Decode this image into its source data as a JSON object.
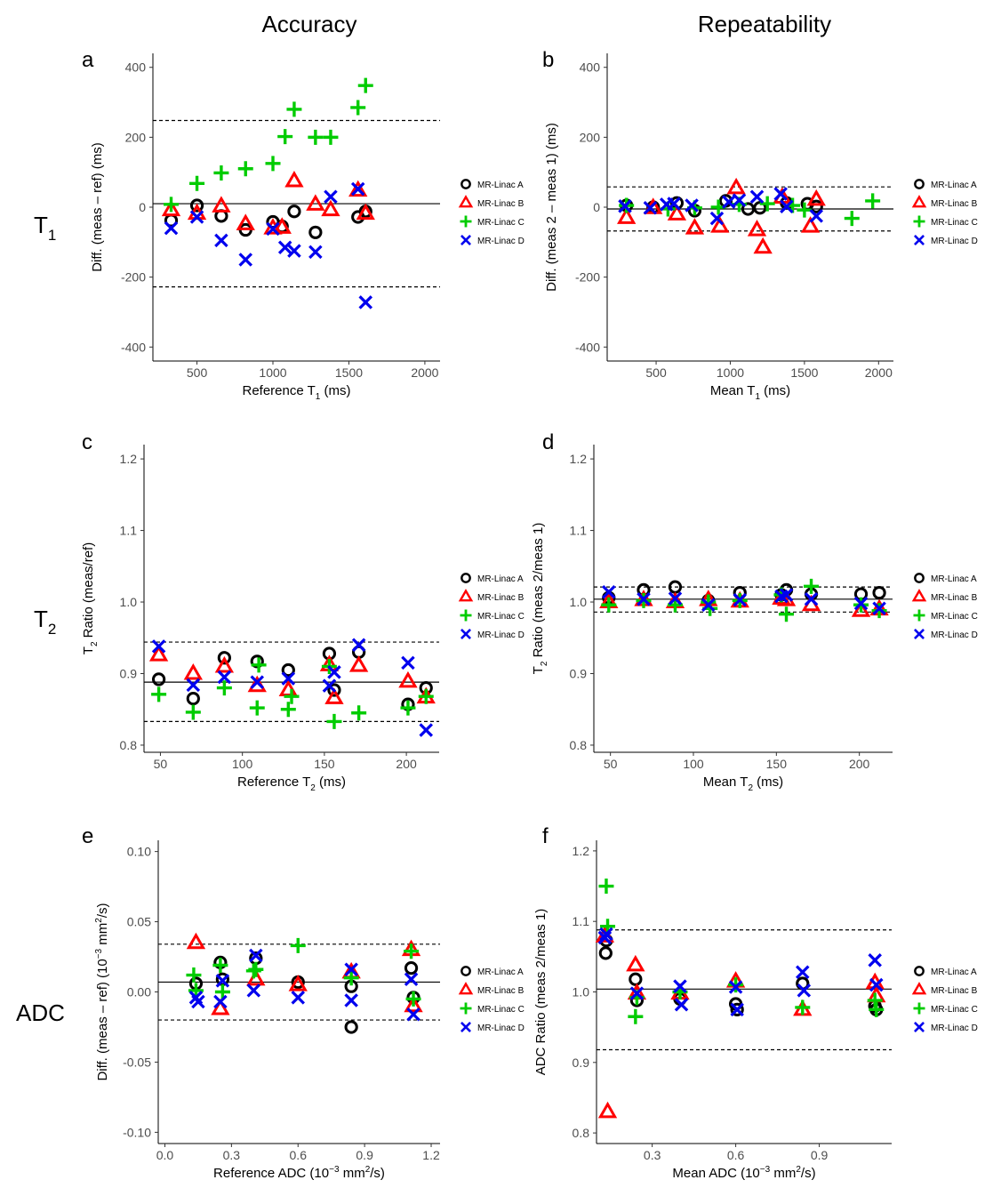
{
  "column_titles": [
    "Accuracy",
    "Repeatability"
  ],
  "row_titles": [
    {
      "main": "T",
      "sub": "1"
    },
    {
      "main": "T",
      "sub": "2"
    },
    {
      "main": "ADC",
      "sub": ""
    }
  ],
  "legend": {
    "entries": [
      "MR-Linac A",
      "MR-Linac B",
      "MR-Linac C",
      "MR-Linac D"
    ],
    "markers": [
      "circle",
      "triangle",
      "plus",
      "cross"
    ],
    "colors": [
      "#000000",
      "#ff0000",
      "#00cc00",
      "#0000ee"
    ]
  },
  "chart_data": [
    {
      "type": "scatter",
      "panel": "a",
      "xlabel": {
        "pre": "Reference T",
        "sub": "1",
        "post": " (ms)"
      },
      "ylabel": "Diff. (meas – ref) (ms)",
      "xlim": [
        210,
        2100
      ],
      "ylim": [
        -440,
        440
      ],
      "xticks": [
        500,
        1000,
        1500,
        2000
      ],
      "yticks": [
        -400,
        -200,
        0,
        200,
        400
      ],
      "hlines": {
        "solid": 10,
        "dashed": [
          248,
          -228
        ]
      },
      "series": [
        {
          "name": "MR-Linac A",
          "x": [
            330,
            500,
            660,
            820,
            1000,
            1060,
            1140,
            1280,
            1560,
            1610
          ],
          "y": [
            -38,
            5,
            -25,
            -65,
            -42,
            -55,
            -12,
            -72,
            -28,
            -12
          ]
        },
        {
          "name": "MR-Linac B",
          "x": [
            330,
            500,
            660,
            820,
            1000,
            1060,
            1140,
            1280,
            1380,
            1560,
            1610
          ],
          "y": [
            -8,
            -18,
            3,
            -48,
            -60,
            -58,
            75,
            8,
            -8,
            48,
            -18
          ]
        },
        {
          "name": "MR-Linac C",
          "x": [
            330,
            500,
            660,
            820,
            1000,
            1080,
            1140,
            1280,
            1380,
            1560,
            1610
          ],
          "y": [
            8,
            68,
            98,
            110,
            125,
            202,
            280,
            200,
            200,
            285,
            348
          ]
        },
        {
          "name": "MR-Linac D",
          "x": [
            330,
            500,
            660,
            820,
            1000,
            1080,
            1140,
            1280,
            1380,
            1560,
            1610
          ],
          "y": [
            -60,
            -28,
            -95,
            -150,
            -62,
            -115,
            -125,
            -128,
            30,
            52,
            -272
          ]
        }
      ]
    },
    {
      "type": "scatter",
      "panel": "b",
      "xlabel": {
        "pre": "Mean T",
        "sub": "1",
        "post": " (ms)"
      },
      "ylabel": "Diff. (meas 2 – meas 1) (ms)",
      "xlim": [
        170,
        2100
      ],
      "ylim": [
        -440,
        440
      ],
      "xticks": [
        500,
        1000,
        1500,
        2000
      ],
      "yticks": [
        -400,
        -200,
        0,
        200,
        400
      ],
      "hlines": {
        "solid": -5,
        "dashed": [
          58,
          -68
        ]
      },
      "series": [
        {
          "name": "MR-Linac A",
          "x": [
            300,
            480,
            640,
            760,
            970,
            1120,
            1200,
            1380,
            1520,
            1580
          ],
          "y": [
            5,
            0,
            12,
            -10,
            18,
            -5,
            -2,
            12,
            10,
            2
          ]
        },
        {
          "name": "MR-Linac B",
          "x": [
            300,
            480,
            640,
            760,
            930,
            1040,
            1180,
            1220,
            1350,
            1540,
            1580
          ],
          "y": [
            -30,
            -2,
            -20,
            -60,
            -55,
            55,
            -65,
            -115,
            28,
            -55,
            22
          ]
        },
        {
          "name": "MR-Linac C",
          "x": [
            300,
            580,
            760,
            920,
            1060,
            1250,
            1420,
            1500,
            1820,
            1960
          ],
          "y": [
            5,
            -5,
            -2,
            0,
            8,
            10,
            5,
            -8,
            -32,
            18
          ]
        },
        {
          "name": "MR-Linac D",
          "x": [
            290,
            460,
            570,
            620,
            740,
            910,
            990,
            1060,
            1180,
            1340,
            1380,
            1580
          ],
          "y": [
            3,
            -2,
            8,
            10,
            5,
            -32,
            15,
            20,
            30,
            38,
            2,
            -25
          ]
        }
      ]
    },
    {
      "type": "scatter",
      "panel": "c",
      "xlabel": {
        "pre": "Reference T",
        "sub": "2",
        "post": " (ms)"
      },
      "ylabel": {
        "pre": "T",
        "sub": "2",
        "post": " Ratio (meas/ref)"
      },
      "xlim": [
        40,
        220
      ],
      "ylim": [
        0.79,
        1.22
      ],
      "xticks": [
        50,
        100,
        150,
        200
      ],
      "yticks": [
        0.8,
        0.9,
        1.0,
        1.1,
        1.2
      ],
      "yticklabels": [
        "0.8",
        "0.9",
        "1.0",
        "1.1",
        "1.2"
      ],
      "hlines": {
        "solid": 0.888,
        "dashed": [
          0.944,
          0.833
        ]
      },
      "series": [
        {
          "name": "MR-Linac A",
          "x": [
            49,
            70,
            89,
            109,
            128,
            153,
            156,
            171,
            201,
            212
          ],
          "y": [
            0.892,
            0.865,
            0.922,
            0.917,
            0.905,
            0.928,
            0.877,
            0.93,
            0.857,
            0.88
          ]
        },
        {
          "name": "MR-Linac B",
          "x": [
            49,
            70,
            89,
            109,
            128,
            153,
            156,
            171,
            201,
            212
          ],
          "y": [
            0.926,
            0.9,
            0.91,
            0.883,
            0.877,
            0.912,
            0.866,
            0.911,
            0.889,
            0.867
          ]
        },
        {
          "name": "MR-Linac C",
          "x": [
            49,
            70,
            89,
            109,
            110,
            128,
            130,
            153,
            156,
            171,
            201,
            212
          ],
          "y": [
            0.871,
            0.846,
            0.88,
            0.852,
            0.912,
            0.85,
            0.868,
            0.91,
            0.833,
            0.845,
            0.852,
            0.868
          ]
        },
        {
          "name": "MR-Linac D",
          "x": [
            49,
            70,
            89,
            109,
            128,
            153,
            156,
            171,
            201,
            212
          ],
          "y": [
            0.938,
            0.884,
            0.895,
            0.888,
            0.893,
            0.883,
            0.902,
            0.94,
            0.915,
            0.821
          ]
        }
      ]
    },
    {
      "type": "scatter",
      "panel": "d",
      "xlabel": {
        "pre": "Mean T",
        "sub": "2",
        "post": " (ms)"
      },
      "ylabel": {
        "pre": "T",
        "sub": "2",
        "post": " Ratio (meas 2/meas 1)"
      },
      "xlim": [
        40,
        220
      ],
      "ylim": [
        0.79,
        1.22
      ],
      "xticks": [
        50,
        100,
        150,
        200
      ],
      "yticks": [
        0.8,
        0.9,
        1.0,
        1.1,
        1.2
      ],
      "yticklabels": [
        "0.8",
        "0.9",
        "1.0",
        "1.1",
        "1.2"
      ],
      "hlines": {
        "solid": 1.004,
        "dashed": [
          1.021,
          0.986
        ]
      },
      "series": [
        {
          "name": "MR-Linac A",
          "x": [
            49,
            70,
            89,
            109,
            128,
            153,
            156,
            171,
            201,
            212
          ],
          "y": [
            1.006,
            1.017,
            1.021,
            1.002,
            1.013,
            1.01,
            1.017,
            1.011,
            1.011,
            1.013
          ]
        },
        {
          "name": "MR-Linac B",
          "x": [
            49,
            70,
            89,
            109,
            128,
            153,
            156,
            171,
            201,
            212
          ],
          "y": [
            1.0,
            1.003,
            1.0,
            1.003,
            1.001,
            1.005,
            1.003,
            0.996,
            0.988,
            0.99
          ]
        },
        {
          "name": "MR-Linac C",
          "x": [
            49,
            70,
            89,
            109,
            110,
            128,
            153,
            156,
            171,
            201,
            212
          ],
          "y": [
            0.996,
            1.002,
            0.996,
            1.0,
            0.991,
            1.002,
            1.01,
            0.983,
            1.022,
            0.996,
            0.988
          ]
        },
        {
          "name": "MR-Linac D",
          "x": [
            49,
            70,
            89,
            109,
            128,
            153,
            156,
            171,
            201,
            212
          ],
          "y": [
            1.014,
            1.004,
            1.005,
            0.996,
            1.003,
            1.008,
            1.01,
            1.004,
            0.998,
            0.991
          ]
        }
      ]
    },
    {
      "type": "scatter",
      "panel": "e",
      "xlabel": {
        "pre": "Reference ADC (10",
        "sup": "−3",
        "mid": " mm",
        "sup2": "2",
        "post": "/s)"
      },
      "ylabel": {
        "pre": "Diff. (meas – ref) (10",
        "sup": "−3",
        "mid": " mm",
        "sup2": "2",
        "post": "/s)"
      },
      "xlim": [
        -0.03,
        1.24
      ],
      "ylim": [
        -0.108,
        0.108
      ],
      "xticks": [
        0.0,
        0.3,
        0.6,
        0.9,
        1.2
      ],
      "xticklabels": [
        "0.0",
        "0.3",
        "0.6",
        "0.9",
        "1.2"
      ],
      "yticks": [
        -0.1,
        -0.05,
        0.0,
        0.05,
        0.1
      ],
      "yticklabels": [
        "-0.10",
        "-0.05",
        "0.00",
        "0.05",
        "0.10"
      ],
      "hlines": {
        "solid": 0.007,
        "dashed": [
          0.034,
          -0.02
        ]
      },
      "series": [
        {
          "name": "MR-Linac A",
          "x": [
            0.14,
            0.25,
            0.26,
            0.41,
            0.6,
            0.84,
            0.84,
            1.11,
            1.12
          ],
          "y": [
            0.006,
            0.021,
            0.009,
            0.024,
            0.007,
            0.004,
            -0.025,
            0.017,
            -0.004
          ]
        },
        {
          "name": "MR-Linac B",
          "x": [
            0.14,
            0.25,
            0.41,
            0.6,
            0.84,
            1.11,
            1.12
          ],
          "y": [
            0.035,
            -0.012,
            0.009,
            0.005,
            0.014,
            0.03,
            -0.01
          ]
        },
        {
          "name": "MR-Linac C",
          "x": [
            0.13,
            0.14,
            0.25,
            0.26,
            0.4,
            0.41,
            0.6,
            0.84,
            1.11,
            1.12
          ],
          "y": [
            0.012,
            0.001,
            0.019,
            0.0,
            0.015,
            0.016,
            0.033,
            0.01,
            0.029,
            -0.005
          ]
        },
        {
          "name": "MR-Linac D",
          "x": [
            0.14,
            0.15,
            0.25,
            0.26,
            0.4,
            0.41,
            0.6,
            0.84,
            0.84,
            1.11,
            1.12
          ],
          "y": [
            -0.004,
            -0.007,
            -0.007,
            0.008,
            0.001,
            0.026,
            -0.004,
            0.016,
            -0.006,
            0.009,
            -0.016
          ]
        }
      ]
    },
    {
      "type": "scatter",
      "panel": "f",
      "xlabel": {
        "pre": "Mean ADC (10",
        "sup": "−3",
        "mid": " mm",
        "sup2": "2",
        "post": "/s)"
      },
      "ylabel": "ADC Ratio (meas 2/meas 1)",
      "xlim": [
        0.1,
        1.16
      ],
      "ylim": [
        0.785,
        1.215
      ],
      "xticks": [
        0.3,
        0.6,
        0.9
      ],
      "xticklabels": [
        "0.3",
        "0.6",
        "0.9"
      ],
      "yticks": [
        0.8,
        0.9,
        1.0,
        1.1,
        1.2
      ],
      "yticklabels": [
        "0.8",
        "0.9",
        "1.0",
        "1.1",
        "1.2"
      ],
      "hlines": {
        "solid": 1.004,
        "dashed": [
          1.088,
          0.918
        ]
      },
      "series": [
        {
          "name": "MR-Linac A",
          "x": [
            0.133,
            0.135,
            0.24,
            0.245,
            0.4,
            0.6,
            0.605,
            0.84,
            1.1,
            1.105
          ],
          "y": [
            1.055,
            1.073,
            1.018,
            0.988,
            0.99,
            0.983,
            0.975,
            1.012,
            0.98,
            0.975
          ]
        },
        {
          "name": "MR-Linac B",
          "x": [
            0.13,
            0.14,
            0.24,
            0.245,
            0.4,
            0.6,
            0.84,
            1.1,
            1.105
          ],
          "y": [
            1.079,
            0.83,
            1.038,
            0.998,
            0.998,
            1.015,
            0.975,
            1.013,
            0.994
          ]
        },
        {
          "name": "MR-Linac C",
          "x": [
            0.135,
            0.14,
            0.24,
            0.245,
            0.4,
            0.6,
            0.84,
            1.1,
            1.105
          ],
          "y": [
            1.15,
            1.093,
            0.965,
            0.992,
            1.0,
            1.01,
            0.978,
            0.988,
            0.975
          ]
        },
        {
          "name": "MR-Linac D",
          "x": [
            0.13,
            0.135,
            0.245,
            0.4,
            0.405,
            0.6,
            0.605,
            0.84,
            0.845,
            1.1,
            1.105
          ],
          "y": [
            1.077,
            1.082,
            0.998,
            1.008,
            0.982,
            1.007,
            0.975,
            1.028,
            1.002,
            1.045,
            1.01
          ]
        }
      ]
    }
  ]
}
